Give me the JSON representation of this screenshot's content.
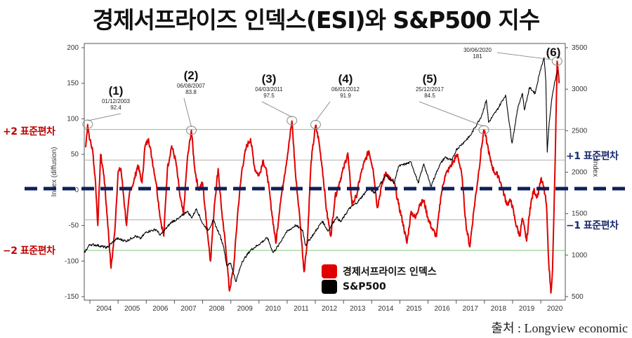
{
  "title": "경제서프라이즈 인덱스(ESI)와 S&P500 지수",
  "source": "출처 : Longview economic",
  "sd_labels": {
    "plus2": "+2 표준편차",
    "minus2": "−2 표준편차",
    "plus1": "+1 표준편차",
    "minus1": "−1 표준편차"
  },
  "colors": {
    "esi": "#e00000",
    "sp500": "#000000",
    "sd2_line": "#7fc97f",
    "sd1_line": "#b0b0b0",
    "zero_dash": "#0d1f5c"
  },
  "chart_data": {
    "type": "line",
    "title": "경제서프라이즈 인덱스(ESI)와 S&P500 지수",
    "ylabel_left": "Index (diffusion)",
    "ylabel_right": "Index",
    "xlim": [
      2003.8,
      2020.87
    ],
    "ylim_left": [
      -150,
      200
    ],
    "ylim_right": [
      500,
      3500
    ],
    "x_ticks": [
      "2004",
      "2005",
      "2006",
      "2007",
      "2008",
      "2009",
      "2010",
      "2011",
      "2012",
      "2013",
      "2014",
      "2015",
      "2016",
      "2017",
      "2018",
      "2019",
      "2020"
    ],
    "y_ticks_left": [
      200,
      150,
      100,
      50,
      0,
      -50,
      -100,
      -150
    ],
    "y_ticks_left_labels": [
      "200",
      "150",
      "100",
      "50",
      "0",
      "-50",
      "-100",
      "-150"
    ],
    "y_ticks_right": [
      3500,
      3000,
      2500,
      2000,
      1500,
      1000,
      500
    ],
    "y_ticks_right_labels": [
      "3500",
      "3000",
      "2500",
      "2000",
      "1500",
      "1000",
      "500"
    ],
    "reference_lines": {
      "plus2sd": 85,
      "plus1sd": 42,
      "minus1sd": -42,
      "minus2sd": -85,
      "zero": 1
    },
    "legend": {
      "placement": "bottom-center",
      "entries": [
        "경제서프라이즈 인덱스",
        "S&P500"
      ]
    },
    "series": [
      {
        "name": "경제서프라이즈 인덱스",
        "axis": "left",
        "points": [
          [
            2003.85,
            60
          ],
          [
            2003.92,
            92
          ],
          [
            2004.0,
            70
          ],
          [
            2004.1,
            55
          ],
          [
            2004.2,
            10
          ],
          [
            2004.28,
            -50
          ],
          [
            2004.38,
            50
          ],
          [
            2004.5,
            20
          ],
          [
            2004.62,
            -40
          ],
          [
            2004.75,
            -110
          ],
          [
            2004.88,
            -60
          ],
          [
            2005.0,
            25
          ],
          [
            2005.1,
            30
          ],
          [
            2005.2,
            -10
          ],
          [
            2005.3,
            -50
          ],
          [
            2005.42,
            0
          ],
          [
            2005.55,
            10
          ],
          [
            2005.7,
            35
          ],
          [
            2005.85,
            10
          ],
          [
            2005.95,
            60
          ],
          [
            2006.08,
            72
          ],
          [
            2006.2,
            45
          ],
          [
            2006.35,
            10
          ],
          [
            2006.5,
            -40
          ],
          [
            2006.62,
            -65
          ],
          [
            2006.75,
            30
          ],
          [
            2006.9,
            62
          ],
          [
            2007.05,
            40
          ],
          [
            2007.2,
            -10
          ],
          [
            2007.32,
            -35
          ],
          [
            2007.45,
            40
          ],
          [
            2007.6,
            84
          ],
          [
            2007.72,
            30
          ],
          [
            2007.85,
            0
          ],
          [
            2008.0,
            10
          ],
          [
            2008.12,
            -40
          ],
          [
            2008.28,
            -100
          ],
          [
            2008.42,
            -20
          ],
          [
            2008.55,
            30
          ],
          [
            2008.7,
            -40
          ],
          [
            2008.82,
            -80
          ],
          [
            2008.95,
            -142
          ],
          [
            2009.1,
            -110
          ],
          [
            2009.25,
            -30
          ],
          [
            2009.4,
            30
          ],
          [
            2009.55,
            60
          ],
          [
            2009.7,
            72
          ],
          [
            2009.85,
            30
          ],
          [
            2010.0,
            20
          ],
          [
            2010.15,
            42
          ],
          [
            2010.3,
            20
          ],
          [
            2010.45,
            -30
          ],
          [
            2010.6,
            -75
          ],
          [
            2010.75,
            -20
          ],
          [
            2010.9,
            20
          ],
          [
            2011.05,
            60
          ],
          [
            2011.17,
            97
          ],
          [
            2011.3,
            20
          ],
          [
            2011.45,
            -40
          ],
          [
            2011.6,
            -115
          ],
          [
            2011.72,
            -70
          ],
          [
            2011.85,
            40
          ],
          [
            2012.01,
            91
          ],
          [
            2012.12,
            70
          ],
          [
            2012.25,
            30
          ],
          [
            2012.4,
            -30
          ],
          [
            2012.55,
            -65
          ],
          [
            2012.7,
            -10
          ],
          [
            2012.85,
            10
          ],
          [
            2013.0,
            30
          ],
          [
            2013.15,
            52
          ],
          [
            2013.3,
            -20
          ],
          [
            2013.45,
            -10
          ],
          [
            2013.6,
            20
          ],
          [
            2013.75,
            40
          ],
          [
            2013.9,
            55
          ],
          [
            2014.05,
            30
          ],
          [
            2014.2,
            -25
          ],
          [
            2014.35,
            5
          ],
          [
            2014.5,
            25
          ],
          [
            2014.65,
            15
          ],
          [
            2014.8,
            10
          ],
          [
            2014.95,
            -20
          ],
          [
            2015.1,
            -45
          ],
          [
            2015.25,
            -75
          ],
          [
            2015.4,
            -30
          ],
          [
            2015.55,
            -40
          ],
          [
            2015.7,
            -20
          ],
          [
            2015.85,
            -15
          ],
          [
            2016.0,
            -40
          ],
          [
            2016.15,
            -55
          ],
          [
            2016.3,
            -65
          ],
          [
            2016.45,
            -10
          ],
          [
            2016.6,
            20
          ],
          [
            2016.75,
            30
          ],
          [
            2016.9,
            40
          ],
          [
            2017.05,
            50
          ],
          [
            2017.2,
            20
          ],
          [
            2017.35,
            -50
          ],
          [
            2017.48,
            -80
          ],
          [
            2017.62,
            -30
          ],
          [
            2017.78,
            20
          ],
          [
            2017.9,
            60
          ],
          [
            2017.98,
            84.5
          ],
          [
            2018.1,
            65
          ],
          [
            2018.22,
            40
          ],
          [
            2018.35,
            25
          ],
          [
            2018.5,
            20
          ],
          [
            2018.65,
            0
          ],
          [
            2018.8,
            -20
          ],
          [
            2018.95,
            -15
          ],
          [
            2019.1,
            -45
          ],
          [
            2019.25,
            -65
          ],
          [
            2019.35,
            -40
          ],
          [
            2019.5,
            -72
          ],
          [
            2019.62,
            -25
          ],
          [
            2019.75,
            0
          ],
          [
            2019.88,
            -10
          ],
          [
            2020.0,
            15
          ],
          [
            2020.1,
            5
          ],
          [
            2020.2,
            -20
          ],
          [
            2020.28,
            -100
          ],
          [
            2020.36,
            -145
          ],
          [
            2020.42,
            -110
          ],
          [
            2020.47,
            -30
          ],
          [
            2020.52,
            60
          ],
          [
            2020.58,
            181
          ],
          [
            2020.65,
            150
          ]
        ]
      },
      {
        "name": "S&P500",
        "axis": "right",
        "points": [
          [
            2003.8,
            1030
          ],
          [
            2004.0,
            1130
          ],
          [
            2004.25,
            1120
          ],
          [
            2004.6,
            1090
          ],
          [
            2004.95,
            1200
          ],
          [
            2005.3,
            1170
          ],
          [
            2005.6,
            1230
          ],
          [
            2005.8,
            1200
          ],
          [
            2006.0,
            1280
          ],
          [
            2006.35,
            1310
          ],
          [
            2006.5,
            1240
          ],
          [
            2006.9,
            1400
          ],
          [
            2007.15,
            1440
          ],
          [
            2007.45,
            1530
          ],
          [
            2007.62,
            1450
          ],
          [
            2007.78,
            1560
          ],
          [
            2008.0,
            1380
          ],
          [
            2008.2,
            1300
          ],
          [
            2008.38,
            1420
          ],
          [
            2008.6,
            1250
          ],
          [
            2008.75,
            1100
          ],
          [
            2008.85,
            880
          ],
          [
            2009.0,
            900
          ],
          [
            2009.18,
            680
          ],
          [
            2009.4,
            920
          ],
          [
            2009.7,
            1060
          ],
          [
            2010.0,
            1130
          ],
          [
            2010.3,
            1210
          ],
          [
            2010.5,
            1030
          ],
          [
            2010.7,
            1120
          ],
          [
            2010.95,
            1270
          ],
          [
            2011.3,
            1360
          ],
          [
            2011.55,
            1300
          ],
          [
            2011.65,
            1120
          ],
          [
            2011.95,
            1260
          ],
          [
            2012.25,
            1410
          ],
          [
            2012.45,
            1290
          ],
          [
            2012.75,
            1460
          ],
          [
            2012.9,
            1400
          ],
          [
            2013.2,
            1560
          ],
          [
            2013.5,
            1640
          ],
          [
            2013.9,
            1810
          ],
          [
            2014.1,
            1750
          ],
          [
            2014.5,
            1960
          ],
          [
            2014.8,
            1870
          ],
          [
            2014.95,
            2070
          ],
          [
            2015.4,
            2120
          ],
          [
            2015.65,
            1870
          ],
          [
            2015.85,
            2100
          ],
          [
            2016.1,
            1830
          ],
          [
            2016.4,
            2080
          ],
          [
            2016.6,
            2180
          ],
          [
            2016.85,
            2140
          ],
          [
            2017.0,
            2270
          ],
          [
            2017.5,
            2440
          ],
          [
            2017.9,
            2680
          ],
          [
            2018.07,
            2870
          ],
          [
            2018.15,
            2600
          ],
          [
            2018.45,
            2750
          ],
          [
            2018.75,
            2930
          ],
          [
            2018.98,
            2350
          ],
          [
            2019.2,
            2800
          ],
          [
            2019.35,
            2950
          ],
          [
            2019.42,
            2750
          ],
          [
            2019.6,
            3020
          ],
          [
            2019.8,
            2950
          ],
          [
            2019.98,
            3230
          ],
          [
            2020.12,
            3380
          ],
          [
            2020.18,
            3100
          ],
          [
            2020.23,
            2240
          ],
          [
            2020.3,
            2600
          ],
          [
            2020.4,
            2900
          ],
          [
            2020.5,
            3100
          ],
          [
            2020.6,
            3230
          ]
        ]
      }
    ],
    "annotations": [
      {
        "label": "(1)",
        "date": "01/12/2003",
        "value": "92.4",
        "x": 2003.92,
        "y": 92.4
      },
      {
        "label": "(2)",
        "date": "06/08/2007",
        "value": "83.8",
        "x": 2007.6,
        "y": 83.8
      },
      {
        "label": "(3)",
        "date": "04/03/2011",
        "value": "97.5",
        "x": 2011.17,
        "y": 97.5
      },
      {
        "label": "(4)",
        "date": "06/01/2012",
        "value": "91.9",
        "x": 2012.01,
        "y": 91.9
      },
      {
        "label": "(5)",
        "date": "25/12/2017",
        "value": "84.5",
        "x": 2017.98,
        "y": 84.5
      },
      {
        "label": "(6)",
        "date": "30/06/2020",
        "value": "181",
        "x": 2020.58,
        "y": 181
      }
    ]
  }
}
